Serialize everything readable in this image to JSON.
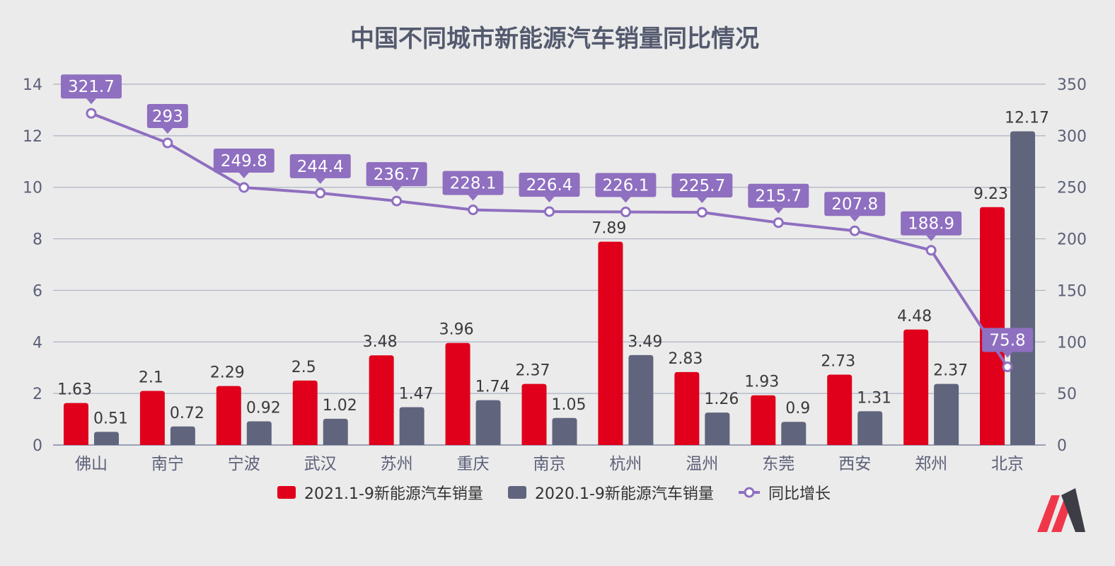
{
  "chart_data": {
    "type": "bar",
    "title": "中国不同城市新能源汽车销量同比情况",
    "categories": [
      "佛山",
      "南宁",
      "宁波",
      "武汉",
      "苏州",
      "重庆",
      "南京",
      "杭州",
      "温州",
      "东莞",
      "西安",
      "郑州",
      "北京"
    ],
    "series": [
      {
        "name": "2021.1-9新能源汽车销量",
        "type": "bar",
        "axis": "left",
        "color": "#e0001b",
        "values": [
          1.63,
          2.1,
          2.29,
          2.5,
          3.48,
          3.96,
          2.37,
          7.89,
          2.83,
          1.93,
          2.73,
          4.48,
          9.23
        ]
      },
      {
        "name": "2020.1-9新能源汽车销量",
        "type": "bar",
        "axis": "left",
        "color": "#60657d",
        "values": [
          0.51,
          0.72,
          0.92,
          1.02,
          1.47,
          1.74,
          1.05,
          3.49,
          1.26,
          0.9,
          1.31,
          2.37,
          12.17
        ]
      },
      {
        "name": "同比增长",
        "type": "line",
        "axis": "right",
        "color": "#8f6fc0",
        "values": [
          321.7,
          293,
          249.8,
          244.4,
          236.7,
          228.1,
          226.4,
          226.1,
          225.7,
          215.7,
          207.8,
          188.9,
          75.8
        ]
      }
    ],
    "y_left": {
      "min": 0,
      "max": 14,
      "ticks": [
        0,
        2,
        4,
        6,
        8,
        10,
        12,
        14
      ]
    },
    "y_right": {
      "min": 0,
      "max": 350,
      "ticks": [
        0,
        50,
        100,
        150,
        200,
        250,
        300,
        350
      ]
    },
    "grid": true,
    "legend_position": "bottom",
    "logo_icon": "m-logo-icon"
  }
}
